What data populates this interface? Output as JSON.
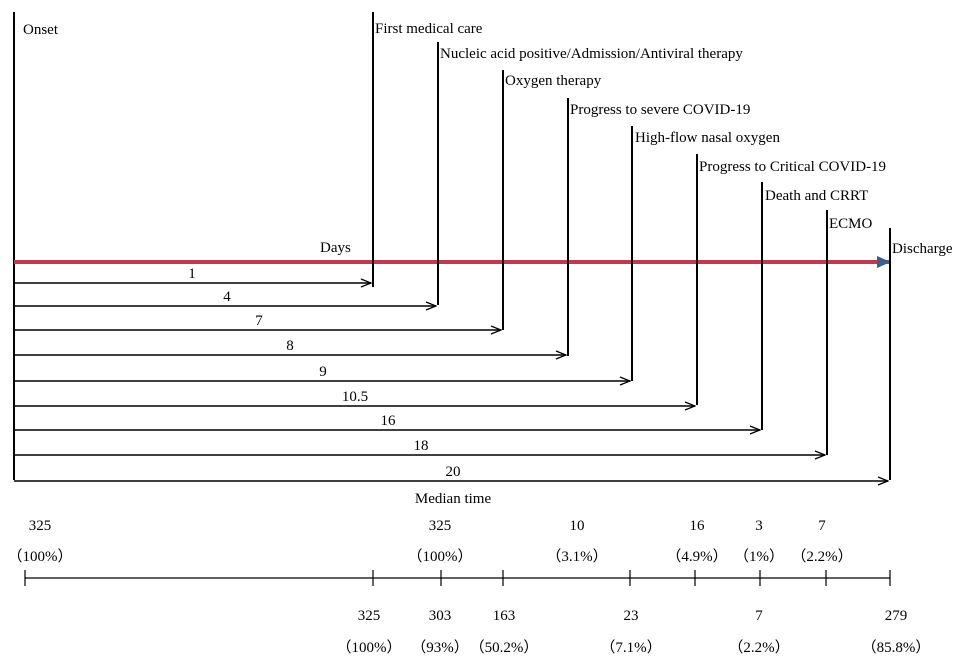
{
  "colors": {
    "line": "#000000",
    "days_axis": "#c0394f",
    "days_arrow": "#3a5f8a"
  },
  "onset_label": "Onset",
  "days_label": "Days",
  "median_label": "Median time",
  "events": [
    {
      "label": "First medical care",
      "median_days": "1"
    },
    {
      "label": "Nucleic acid positive/Admission/Antiviral therapy",
      "median_days": "4"
    },
    {
      "label": "Oxygen therapy",
      "median_days": "7"
    },
    {
      "label": "Progress to severe COVID-19",
      "median_days": "8"
    },
    {
      "label": "High-flow nasal oxygen",
      "median_days": "9"
    },
    {
      "label": "Progress to Critical COVID-19",
      "median_days": "10.5"
    },
    {
      "label": "Death and CRRT",
      "median_days": "16"
    },
    {
      "label": "ECMO",
      "median_days": "18"
    },
    {
      "label": "Discharge",
      "median_days": "20"
    }
  ],
  "upper_counts": [
    {
      "count": "325",
      "percent": "（100%）"
    },
    {
      "count": "325",
      "percent": "（100%）"
    },
    {
      "count": "10",
      "percent": "（3.1%）"
    },
    {
      "count": "16",
      "percent": "（4.9%）"
    },
    {
      "count": "3",
      "percent": "（1%）"
    },
    {
      "count": "7",
      "percent": "（2.2%）"
    }
  ],
  "lower_counts": [
    {
      "count": "325",
      "percent": "（100%）"
    },
    {
      "count": "303",
      "percent": "（93%）"
    },
    {
      "count": "163",
      "percent": "（50.2%）"
    },
    {
      "count": "23",
      "percent": "（7.1%）"
    },
    {
      "count": "7",
      "percent": "（2.2%）"
    },
    {
      "count": "279",
      "percent": "（85.8%）"
    }
  ]
}
